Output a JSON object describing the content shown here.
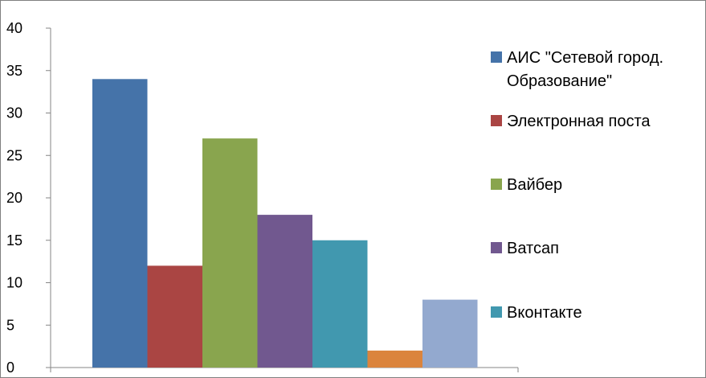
{
  "chart_data": {
    "type": "bar",
    "title": "",
    "xlabel": "",
    "ylabel": "",
    "ylim": [
      0,
      40
    ],
    "yticks": [
      "0",
      "5",
      "10",
      "15",
      "20",
      "25",
      "30",
      "35",
      "40"
    ],
    "grid": false,
    "legend_placement": "right",
    "series": [
      {
        "name_lines": [
          "АИС \"Сетевой город.",
          "Образование\""
        ],
        "value": 34,
        "color": "#4573a9"
      },
      {
        "name_lines": [
          "Электронная поста"
        ],
        "value": 12,
        "color": "#aa4543"
      },
      {
        "name_lines": [
          "Вайбер"
        ],
        "value": 27,
        "color": "#89a54e"
      },
      {
        "name_lines": [
          "Ватсап"
        ],
        "value": 18,
        "color": "#71588f"
      },
      {
        "name_lines": [
          "Вконтакте"
        ],
        "value": 15,
        "color": "#4198af"
      },
      {
        "name_lines": [],
        "value": 2,
        "color": "#db843d"
      },
      {
        "name_lines": [],
        "value": 8,
        "color": "#93a9cf"
      }
    ]
  }
}
